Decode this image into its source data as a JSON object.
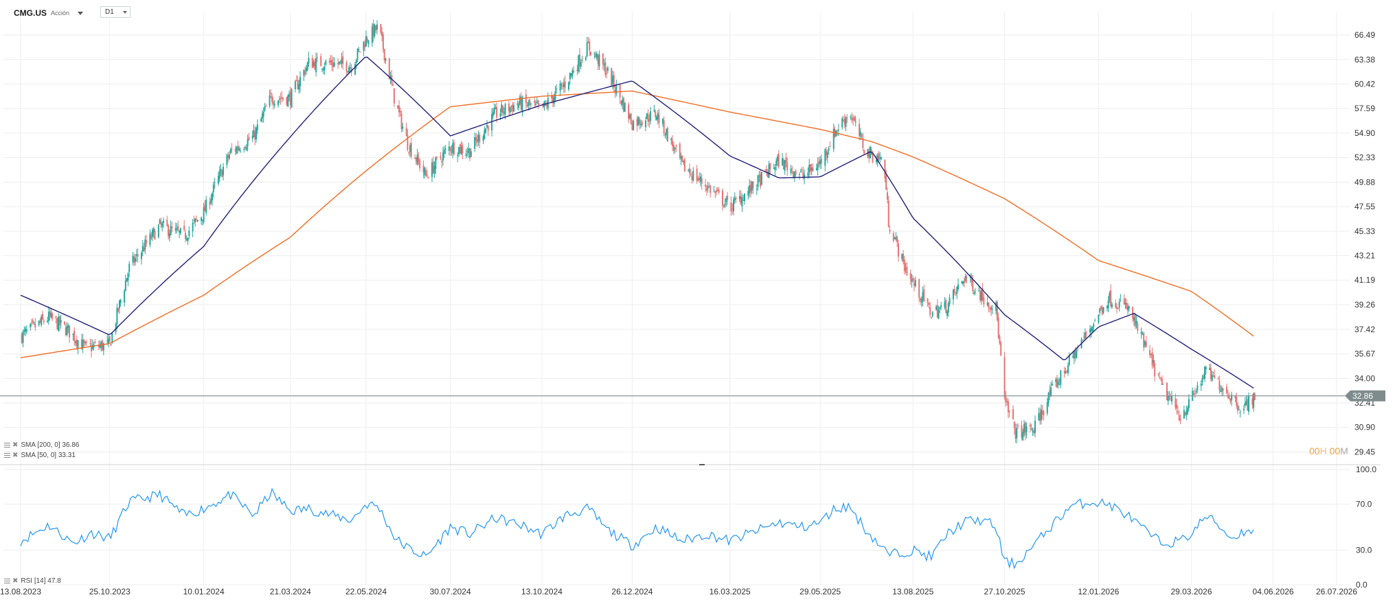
{
  "header": {
    "symbol": "CMG.US",
    "instrument_type": "Acción",
    "timeframe": "D1"
  },
  "legend": {
    "sma200": "SMA [200, 0] 36.86",
    "sma50": "SMA [50, 0] 33.31",
    "rsi": "RSI [14] 47.8"
  },
  "countdown": {
    "hours": "00",
    "h_unit": "H",
    "minutes": "00",
    "m_unit": "M"
  },
  "colors": {
    "bull": "#26a69a",
    "bear": "#e57373",
    "sma50": "#1f1f7a",
    "sma200": "#f26b21",
    "rsi": "#2196f3",
    "price_tag": "#7f8c8d",
    "grid": "#eeeeee"
  },
  "chart_data": [
    {
      "type": "candlestick",
      "title": "CMG.US",
      "y_axis_ticks": [
        "66.49",
        "63.38",
        "60.42",
        "57.59",
        "54.90",
        "52.33",
        "49.88",
        "47.55",
        "45.33",
        "43.21",
        "41.19",
        "39.26",
        "37.42",
        "35.67",
        "34.00",
        "32.41",
        "30.90",
        "29.45"
      ],
      "x_axis_ticks": [
        "13.08.2023",
        "25.10.2023",
        "10.01.2024",
        "21.03.2024",
        "22.05.2024",
        "30.07.2024",
        "13.10.2024",
        "26.12.2024",
        "16.03.2025",
        "29.05.2025",
        "13.08.2025",
        "27.10.2025",
        "12.01.2026",
        "29.03.2026",
        "04.06.2026",
        "26.07.2026"
      ],
      "last_price": "32.86",
      "log_scale": true,
      "ylim": [
        29.0,
        69.5
      ],
      "grid": true,
      "price_anchors": [
        [
          "2023-08-13",
          36.9
        ],
        [
          "2023-09-05",
          38.3
        ],
        [
          "2023-09-20",
          37.4
        ],
        [
          "2023-10-05",
          36.1
        ],
        [
          "2023-10-25",
          36.3
        ],
        [
          "2023-11-10",
          42.2
        ],
        [
          "2023-12-05",
          45.8
        ],
        [
          "2023-12-25",
          44.9
        ],
        [
          "2024-01-10",
          47.0
        ],
        [
          "2024-02-01",
          52.9
        ],
        [
          "2024-02-20",
          54.5
        ],
        [
          "2024-03-05",
          58.8
        ],
        [
          "2024-03-21",
          58.8
        ],
        [
          "2024-04-05",
          63.0
        ],
        [
          "2024-04-25",
          62.9
        ],
        [
          "2024-05-10",
          62.6
        ],
        [
          "2024-05-22",
          66.0
        ],
        [
          "2024-06-01",
          67.5
        ],
        [
          "2024-06-15",
          58.2
        ],
        [
          "2024-06-25",
          53.8
        ],
        [
          "2024-07-10",
          50.5
        ],
        [
          "2024-07-30",
          53.5
        ],
        [
          "2024-08-15",
          53.0
        ],
        [
          "2024-09-05",
          57.0
        ],
        [
          "2024-09-25",
          58.2
        ],
        [
          "2024-10-13",
          57.5
        ],
        [
          "2024-11-01",
          60.5
        ],
        [
          "2024-11-20",
          65.0
        ],
        [
          "2024-12-05",
          62.0
        ],
        [
          "2024-12-26",
          56.0
        ],
        [
          "2025-01-15",
          57.0
        ],
        [
          "2025-02-05",
          51.5
        ],
        [
          "2025-02-25",
          49.5
        ],
        [
          "2025-03-16",
          47.5
        ],
        [
          "2025-04-05",
          49.5
        ],
        [
          "2025-04-25",
          52.0
        ],
        [
          "2025-05-15",
          50.5
        ],
        [
          "2025-05-29",
          51.8
        ],
        [
          "2025-06-10",
          55.0
        ],
        [
          "2025-06-22",
          57.2
        ],
        [
          "2025-07-05",
          53.0
        ],
        [
          "2025-07-20",
          52.0
        ],
        [
          "2025-07-24",
          46.2
        ],
        [
          "2025-08-05",
          42.5
        ],
        [
          "2025-08-13",
          41.0
        ],
        [
          "2025-08-28",
          38.6
        ],
        [
          "2025-09-10",
          39.2
        ],
        [
          "2025-09-25",
          41.5
        ],
        [
          "2025-10-10",
          39.8
        ],
        [
          "2025-10-20",
          39.0
        ],
        [
          "2025-10-27",
          32.5
        ],
        [
          "2025-11-05",
          30.6
        ],
        [
          "2025-11-20",
          30.8
        ],
        [
          "2025-12-05",
          33.2
        ],
        [
          "2025-12-20",
          35.2
        ],
        [
          "2026-01-05",
          37.5
        ],
        [
          "2026-01-20",
          39.8
        ],
        [
          "2026-02-05",
          39.0
        ],
        [
          "2026-02-20",
          36.0
        ],
        [
          "2026-03-05",
          33.4
        ],
        [
          "2026-03-20",
          31.6
        ],
        [
          "2026-03-29",
          32.6
        ],
        [
          "2026-04-10",
          34.5
        ],
        [
          "2026-04-25",
          33.3
        ],
        [
          "2026-05-10",
          32.0
        ],
        [
          "2026-05-20",
          32.9
        ]
      ],
      "series": [
        {
          "name": "SMA [200, 0]",
          "points": [
            [
              "2023-08-13",
              35.4
            ],
            [
              "2023-10-25",
              36.4
            ],
            [
              "2024-01-10",
              40.0
            ],
            [
              "2024-03-21",
              44.8
            ],
            [
              "2024-05-22",
              51.0
            ],
            [
              "2024-07-30",
              57.8
            ],
            [
              "2024-10-13",
              59.0
            ],
            [
              "2024-12-26",
              59.6
            ],
            [
              "2025-03-16",
              57.2
            ],
            [
              "2025-05-29",
              55.3
            ],
            [
              "2025-07-10",
              54.0
            ],
            [
              "2025-08-13",
              52.4
            ],
            [
              "2025-10-27",
              48.3
            ],
            [
              "2026-01-12",
              42.8
            ],
            [
              "2026-03-29",
              40.3
            ],
            [
              "2026-05-20",
              36.86
            ]
          ]
        },
        {
          "name": "SMA [50, 0]",
          "points": [
            [
              "2023-08-13",
              40.0
            ],
            [
              "2023-10-25",
              37.0
            ],
            [
              "2024-01-10",
              44.0
            ],
            [
              "2024-03-21",
              54.5
            ],
            [
              "2024-05-22",
              63.8
            ],
            [
              "2024-07-30",
              54.6
            ],
            [
              "2024-10-13",
              58.0
            ],
            [
              "2024-12-26",
              60.8
            ],
            [
              "2025-03-16",
              52.5
            ],
            [
              "2025-04-25",
              50.3
            ],
            [
              "2025-05-29",
              50.4
            ],
            [
              "2025-07-10",
              53.0
            ],
            [
              "2025-08-13",
              46.5
            ],
            [
              "2025-10-27",
              38.5
            ],
            [
              "2025-12-15",
              35.2
            ],
            [
              "2026-01-12",
              37.6
            ],
            [
              "2026-02-10",
              38.6
            ],
            [
              "2026-03-29",
              36.0
            ],
            [
              "2026-05-20",
              33.31
            ]
          ]
        }
      ]
    },
    {
      "type": "line",
      "title": "RSI [14]",
      "y_axis_ticks": [
        "100.0",
        "70.0",
        "30.0",
        "0.0"
      ],
      "ylim": [
        0,
        100
      ],
      "grid": true,
      "series": [
        {
          "name": "RSI [14]",
          "points": [
            [
              "2023-08-13",
              38
            ],
            [
              "2023-09-05",
              52
            ],
            [
              "2023-09-25",
              36
            ],
            [
              "2023-10-10",
              45
            ],
            [
              "2023-10-25",
              40
            ],
            [
              "2023-11-10",
              72
            ],
            [
              "2023-12-05",
              78
            ],
            [
              "2023-12-25",
              60
            ],
            [
              "2024-01-10",
              66
            ],
            [
              "2024-02-01",
              78
            ],
            [
              "2024-02-20",
              60
            ],
            [
              "2024-03-05",
              80
            ],
            [
              "2024-03-21",
              64
            ],
            [
              "2024-04-05",
              66
            ],
            [
              "2024-04-25",
              60
            ],
            [
              "2024-05-10",
              56
            ],
            [
              "2024-05-22",
              70
            ],
            [
              "2024-06-01",
              68
            ],
            [
              "2024-06-15",
              40
            ],
            [
              "2024-06-25",
              32
            ],
            [
              "2024-07-10",
              24
            ],
            [
              "2024-07-30",
              50
            ],
            [
              "2024-08-15",
              44
            ],
            [
              "2024-09-05",
              58
            ],
            [
              "2024-09-25",
              52
            ],
            [
              "2024-10-13",
              44
            ],
            [
              "2024-11-01",
              60
            ],
            [
              "2024-11-20",
              66
            ],
            [
              "2024-12-05",
              48
            ],
            [
              "2024-12-26",
              34
            ],
            [
              "2025-01-15",
              50
            ],
            [
              "2025-02-05",
              38
            ],
            [
              "2025-02-25",
              44
            ],
            [
              "2025-03-16",
              38
            ],
            [
              "2025-04-05",
              46
            ],
            [
              "2025-04-25",
              54
            ],
            [
              "2025-05-15",
              50
            ],
            [
              "2025-05-29",
              54
            ],
            [
              "2025-06-10",
              66
            ],
            [
              "2025-06-22",
              68
            ],
            [
              "2025-07-05",
              48
            ],
            [
              "2025-07-24",
              26
            ],
            [
              "2025-08-13",
              30
            ],
            [
              "2025-08-28",
              24
            ],
            [
              "2025-09-10",
              44
            ],
            [
              "2025-09-25",
              55
            ],
            [
              "2025-10-10",
              56
            ],
            [
              "2025-10-20",
              50
            ],
            [
              "2025-10-27",
              20
            ],
            [
              "2025-11-05",
              18
            ],
            [
              "2025-11-20",
              34
            ],
            [
              "2025-12-05",
              52
            ],
            [
              "2025-12-20",
              68
            ],
            [
              "2026-01-05",
              72
            ],
            [
              "2026-01-20",
              70
            ],
            [
              "2026-02-05",
              60
            ],
            [
              "2026-02-20",
              46
            ],
            [
              "2026-03-05",
              36
            ],
            [
              "2026-03-20",
              38
            ],
            [
              "2026-03-29",
              44
            ],
            [
              "2026-04-10",
              60
            ],
            [
              "2026-04-20",
              52
            ],
            [
              "2026-05-01",
              40
            ],
            [
              "2026-05-10",
              46
            ],
            [
              "2026-05-20",
              47.8
            ]
          ]
        }
      ]
    }
  ]
}
